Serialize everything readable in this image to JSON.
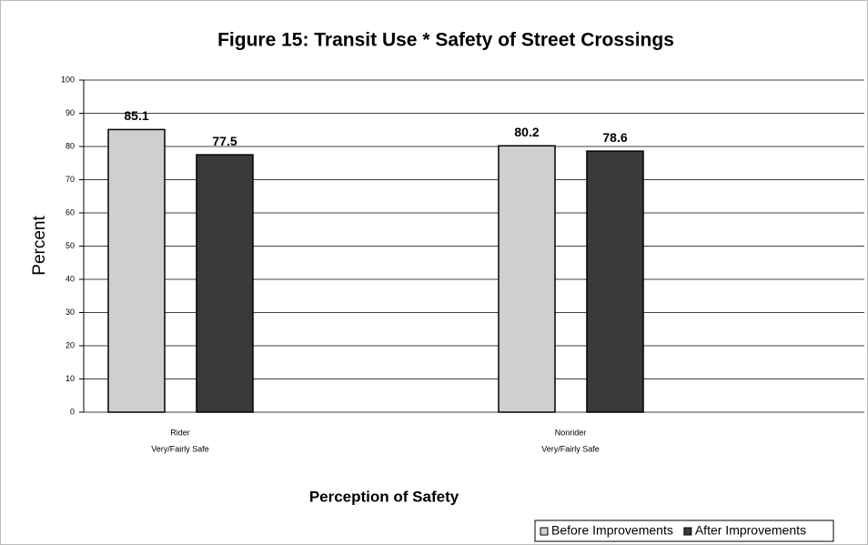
{
  "chart_data": {
    "type": "bar",
    "title": "Figure 15: Transit Use * Safety of Street Crossings",
    "y_label": "Percent",
    "x_label": "Perception of Safety",
    "categories": [
      [
        "Rider",
        "Very/Fairly Safe"
      ],
      [
        "Nonrider",
        "Very/Fairly Safe"
      ]
    ],
    "series": [
      {
        "name": "Before Improvements",
        "color": "#cfcfcf",
        "values": [
          85.1,
          80.2
        ]
      },
      {
        "name": "After Improvements",
        "color": "#3a3a3a",
        "values": [
          77.5,
          78.6
        ]
      }
    ],
    "ylim": [
      0,
      100
    ],
    "yticks": [
      0,
      10,
      20,
      30,
      40,
      50,
      60,
      70,
      80,
      90,
      100
    ],
    "grid": true,
    "legend": "bottom-right"
  }
}
